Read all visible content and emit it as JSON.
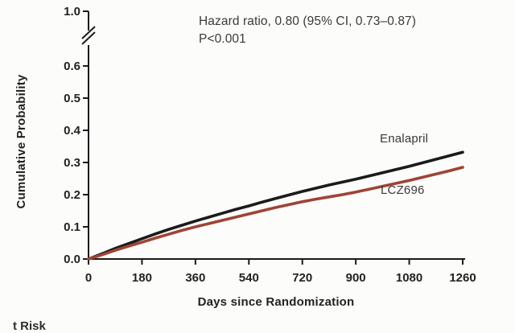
{
  "chart_data": {
    "type": "line",
    "title": "",
    "xlabel": "Days since Randomization",
    "ylabel": "Cumulative Probability",
    "x_ticks": [
      0,
      180,
      360,
      540,
      720,
      900,
      1080,
      1260
    ],
    "y_ticks": [
      "0.0",
      "0.1",
      "0.2",
      "0.3",
      "0.4",
      "0.5",
      "0.6"
    ],
    "y_axis_break": true,
    "y_top_tick": "1.0",
    "xlim": [
      0,
      1260
    ],
    "ylim": [
      0,
      1.0
    ],
    "grid": false,
    "legend_position": "inline-curve-labels",
    "x": [
      0,
      45,
      90,
      135,
      180,
      225,
      270,
      315,
      360,
      405,
      450,
      495,
      540,
      585,
      630,
      675,
      720,
      765,
      810,
      855,
      900,
      945,
      990,
      1035,
      1080,
      1125,
      1170,
      1215,
      1260
    ],
    "series": [
      {
        "name": "Enalapril",
        "color": "#1b1b1b",
        "values": [
          0.0,
          0.016,
          0.033,
          0.048,
          0.063,
          0.078,
          0.092,
          0.105,
          0.118,
          0.13,
          0.142,
          0.154,
          0.165,
          0.177,
          0.188,
          0.199,
          0.21,
          0.22,
          0.23,
          0.239,
          0.248,
          0.258,
          0.268,
          0.278,
          0.288,
          0.299,
          0.31,
          0.321,
          0.332
        ]
      },
      {
        "name": "LCZ696",
        "color": "#9e4434",
        "values": [
          0.0,
          0.013,
          0.027,
          0.04,
          0.052,
          0.065,
          0.077,
          0.089,
          0.1,
          0.11,
          0.12,
          0.13,
          0.14,
          0.15,
          0.16,
          0.169,
          0.178,
          0.186,
          0.193,
          0.2,
          0.208,
          0.217,
          0.226,
          0.235,
          0.244,
          0.254,
          0.264,
          0.274,
          0.285
        ]
      }
    ],
    "annotation": {
      "line1": "Hazard ratio, 0.80 (95% CI, 0.73–0.87)",
      "line2": "P<0.001"
    }
  },
  "labels": {
    "bottom_partial": "t Risk"
  },
  "colors": {
    "axis": "#1a1a1a",
    "text": "#3a3a3a",
    "enalapril_line": "#1b1b1b",
    "lcz696_line": "#9e4434"
  }
}
